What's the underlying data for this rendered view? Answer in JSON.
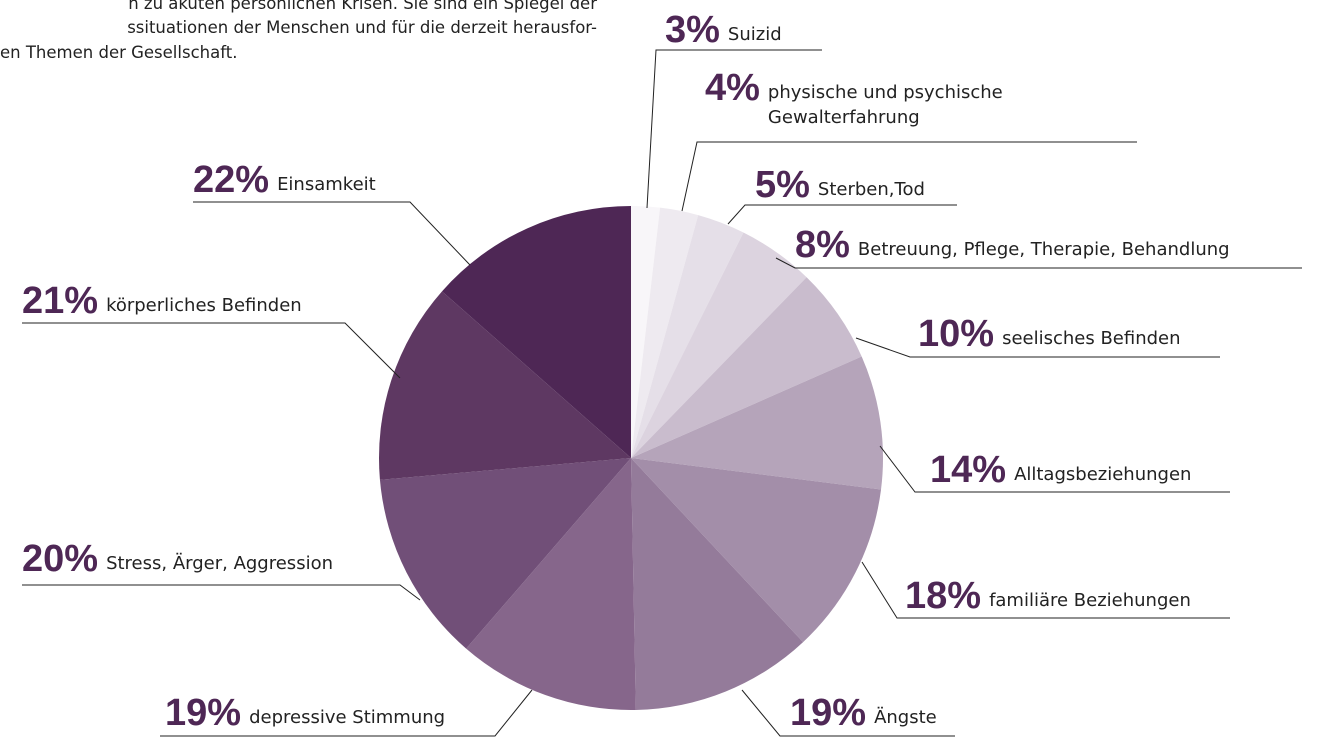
{
  "intro_lines": [
    "n zu akuten persönlichen Krisen. Sie sind ein Spiegel der",
    "ssituationen der Menschen und für die derzeit herausfor-",
    "en Themen der Gesellschaft."
  ],
  "chart_data": {
    "type": "pie",
    "categories": [
      "Suizid",
      "physische und psychische Gewalterfahrung",
      "Sterben,Tod",
      "Betreuung, Pflege, Therapie, Behandlung",
      "seelisches Befinden",
      "Alltagsbeziehungen",
      "familiäre Beziehungen",
      "Ängste",
      "depressive Stimmung",
      "Stress, Ärger, Aggression",
      "körperliches Befinden",
      "Einsamkeit"
    ],
    "values": [
      3,
      4,
      5,
      8,
      10,
      14,
      18,
      19,
      19,
      20,
      21,
      22
    ],
    "value_labels": [
      "3%",
      "4%",
      "5%",
      "8%",
      "10%",
      "14%",
      "18%",
      "19%",
      "19%",
      "20%",
      "21%",
      "22%"
    ],
    "colors": [
      "#f8f6f9",
      "#eeeaf0",
      "#e5dfe8",
      "#dcd3df",
      "#c9bccd",
      "#b5a4ba",
      "#a38ea9",
      "#947b9a",
      "#86668b",
      "#714f78",
      "#5e3862",
      "#4e2755"
    ]
  }
}
